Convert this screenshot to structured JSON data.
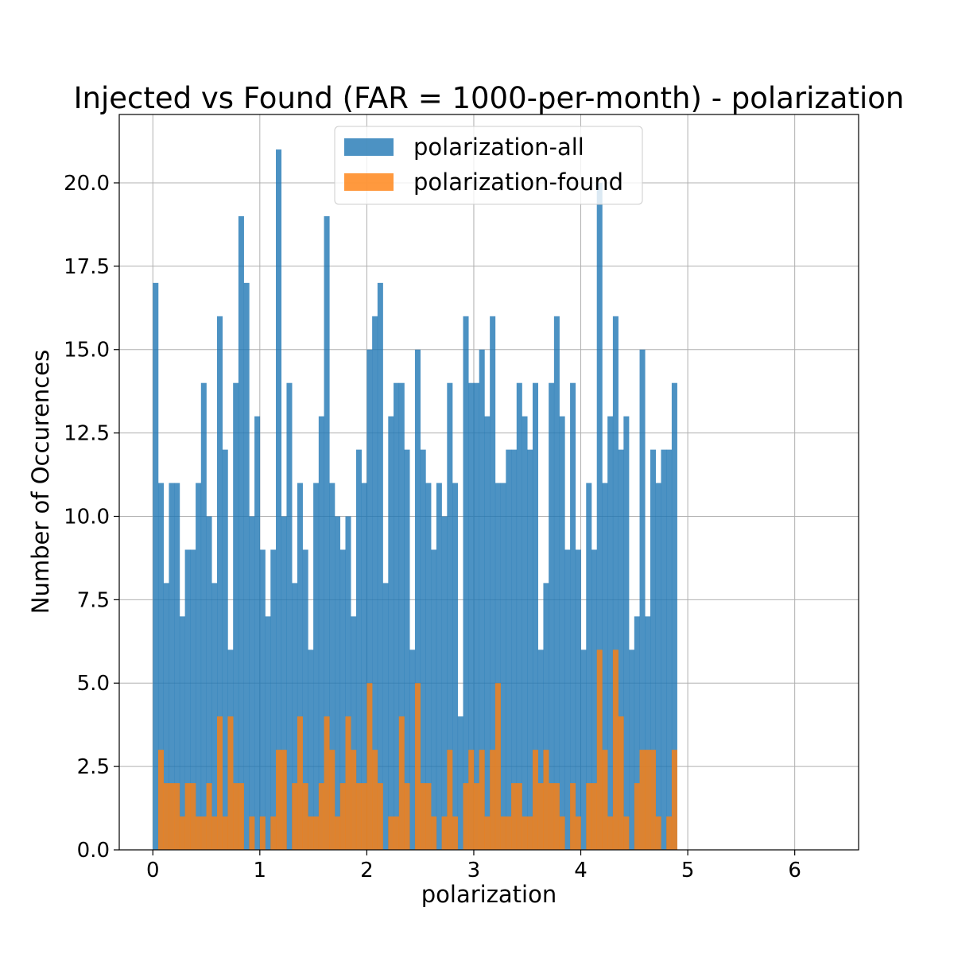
{
  "chart_data": {
    "type": "bar",
    "title": "Injected vs Found (FAR = 1000-per-month) - polarization",
    "xlabel": "polarization",
    "ylabel": "Number of Occurences",
    "xlim": [
      -0.314,
      6.597
    ],
    "ylim": [
      0,
      22.05
    ],
    "xticks": [
      0,
      1,
      2,
      3,
      4,
      5,
      6
    ],
    "yticks": [
      0.0,
      2.5,
      5.0,
      7.5,
      10.0,
      12.5,
      15.0,
      17.5,
      20.0
    ],
    "ytick_labels": [
      "0.0",
      "2.5",
      "5.0",
      "7.5",
      "10.0",
      "12.5",
      "15.0",
      "17.5",
      "20.0"
    ],
    "grid": true,
    "legend_position": "upper center",
    "bin_start": 0.0,
    "bin_width": 0.05,
    "series": [
      {
        "name": "polarization-all",
        "color": "#1f77b4",
        "opacity": 0.8,
        "values": [
          17,
          11,
          8,
          11,
          11,
          7,
          9,
          9,
          11,
          14,
          10,
          8,
          16,
          12,
          6,
          14,
          19,
          17,
          10,
          13,
          9,
          7,
          9,
          21,
          10,
          14,
          8,
          11,
          9,
          6,
          11,
          13,
          19,
          11,
          10,
          9,
          10,
          7,
          12,
          11,
          15,
          16,
          17,
          8,
          13,
          14,
          14,
          12,
          6,
          15,
          12,
          11,
          9,
          11,
          10,
          14,
          11,
          4,
          16,
          14,
          14,
          15,
          13,
          16,
          11,
          11,
          12,
          12,
          14,
          13,
          12,
          14,
          6,
          8,
          14,
          16,
          13,
          9,
          14,
          9,
          6,
          11,
          9,
          20,
          11,
          13,
          16,
          12,
          13,
          6,
          7,
          15,
          7,
          12,
          11,
          12,
          12,
          14
        ]
      },
      {
        "name": "polarization-found",
        "color": "#ff7f0e",
        "opacity": 0.8,
        "values": [
          0,
          3,
          2,
          2,
          2,
          1,
          2,
          2,
          1,
          1,
          2,
          1,
          4,
          1,
          4,
          2,
          2,
          0,
          1,
          0,
          1,
          0,
          1,
          3,
          3,
          0,
          2,
          4,
          2,
          1,
          1,
          2,
          4,
          3,
          1,
          2,
          4,
          3,
          2,
          2,
          5,
          3,
          2,
          0,
          1,
          1,
          4,
          2,
          0,
          5,
          2,
          2,
          1,
          0,
          1,
          3,
          1,
          0,
          2,
          3,
          2,
          3,
          1,
          3,
          5,
          1,
          1,
          2,
          2,
          1,
          1,
          3,
          2,
          3,
          2,
          2,
          1,
          0,
          2,
          1,
          0,
          2,
          2,
          6,
          3,
          1,
          6,
          4,
          1,
          0,
          2,
          3,
          3,
          3,
          1,
          0,
          1,
          3
        ]
      }
    ]
  }
}
